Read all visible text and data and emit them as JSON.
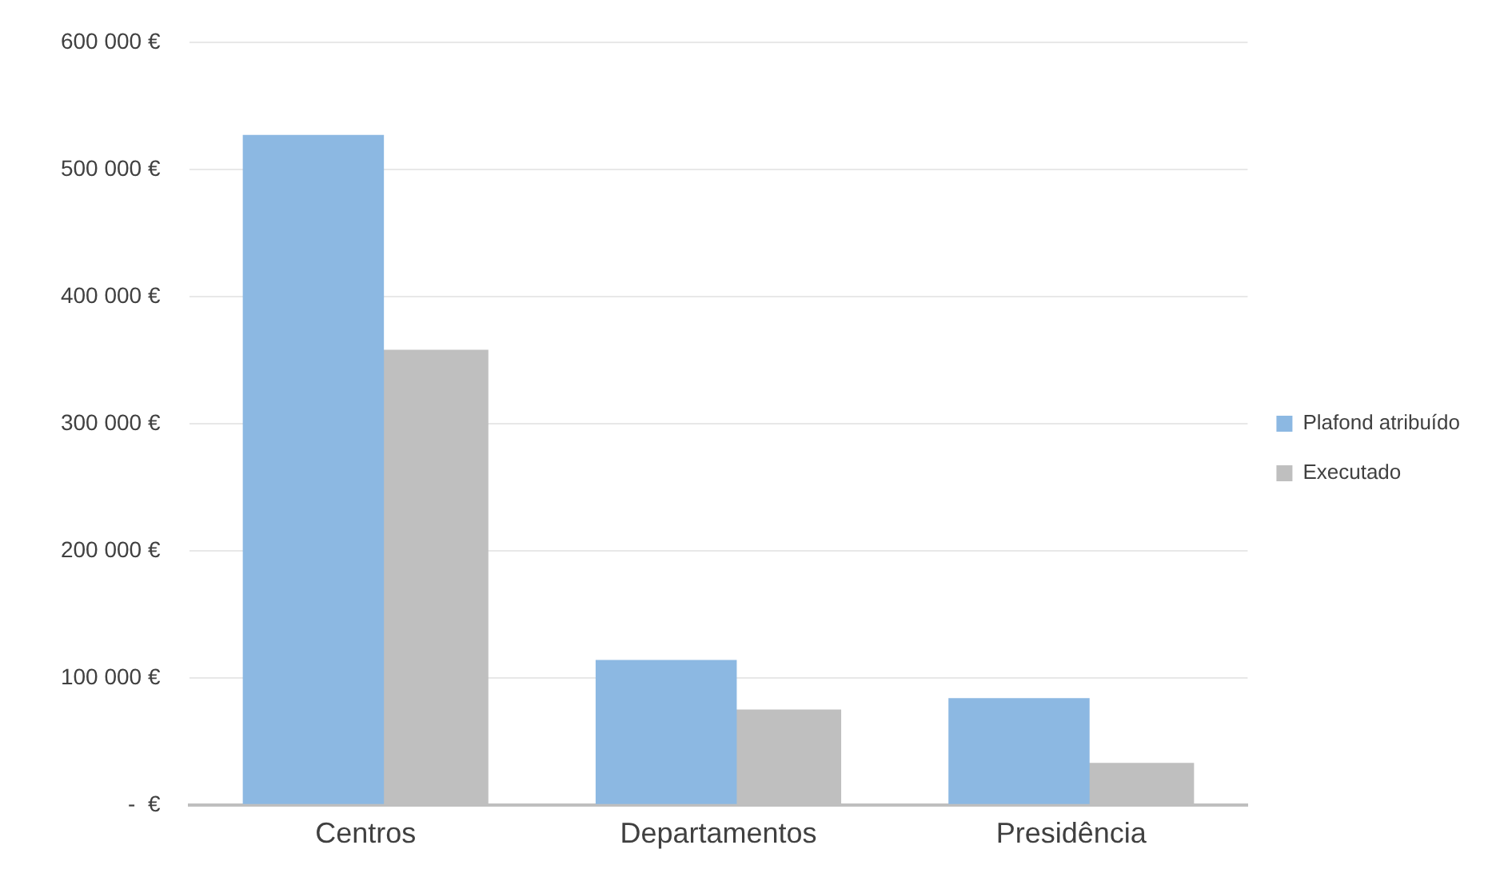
{
  "chart_data": {
    "type": "bar",
    "categories": [
      "Centros",
      "Departamentos",
      "Presidência"
    ],
    "series": [
      {
        "name": "Plafond atribuído",
        "color": "#8cb8e2",
        "values": [
          527000,
          114000,
          84000
        ]
      },
      {
        "name": "Executado",
        "color": "#bfbfbf",
        "values": [
          358000,
          75000,
          33000
        ]
      }
    ],
    "ylim": [
      0,
      600000
    ],
    "yticks": [
      {
        "value": 0,
        "label": "-  €"
      },
      {
        "value": 100000,
        "label": "100 000 €"
      },
      {
        "value": 200000,
        "label": "200 000 €"
      },
      {
        "value": 300000,
        "label": "300 000 €"
      },
      {
        "value": 400000,
        "label": "400 000 €"
      },
      {
        "value": 500000,
        "label": "500 000 €"
      },
      {
        "value": 600000,
        "label": "600 000 €"
      }
    ],
    "grid": "y",
    "legend": "right"
  }
}
